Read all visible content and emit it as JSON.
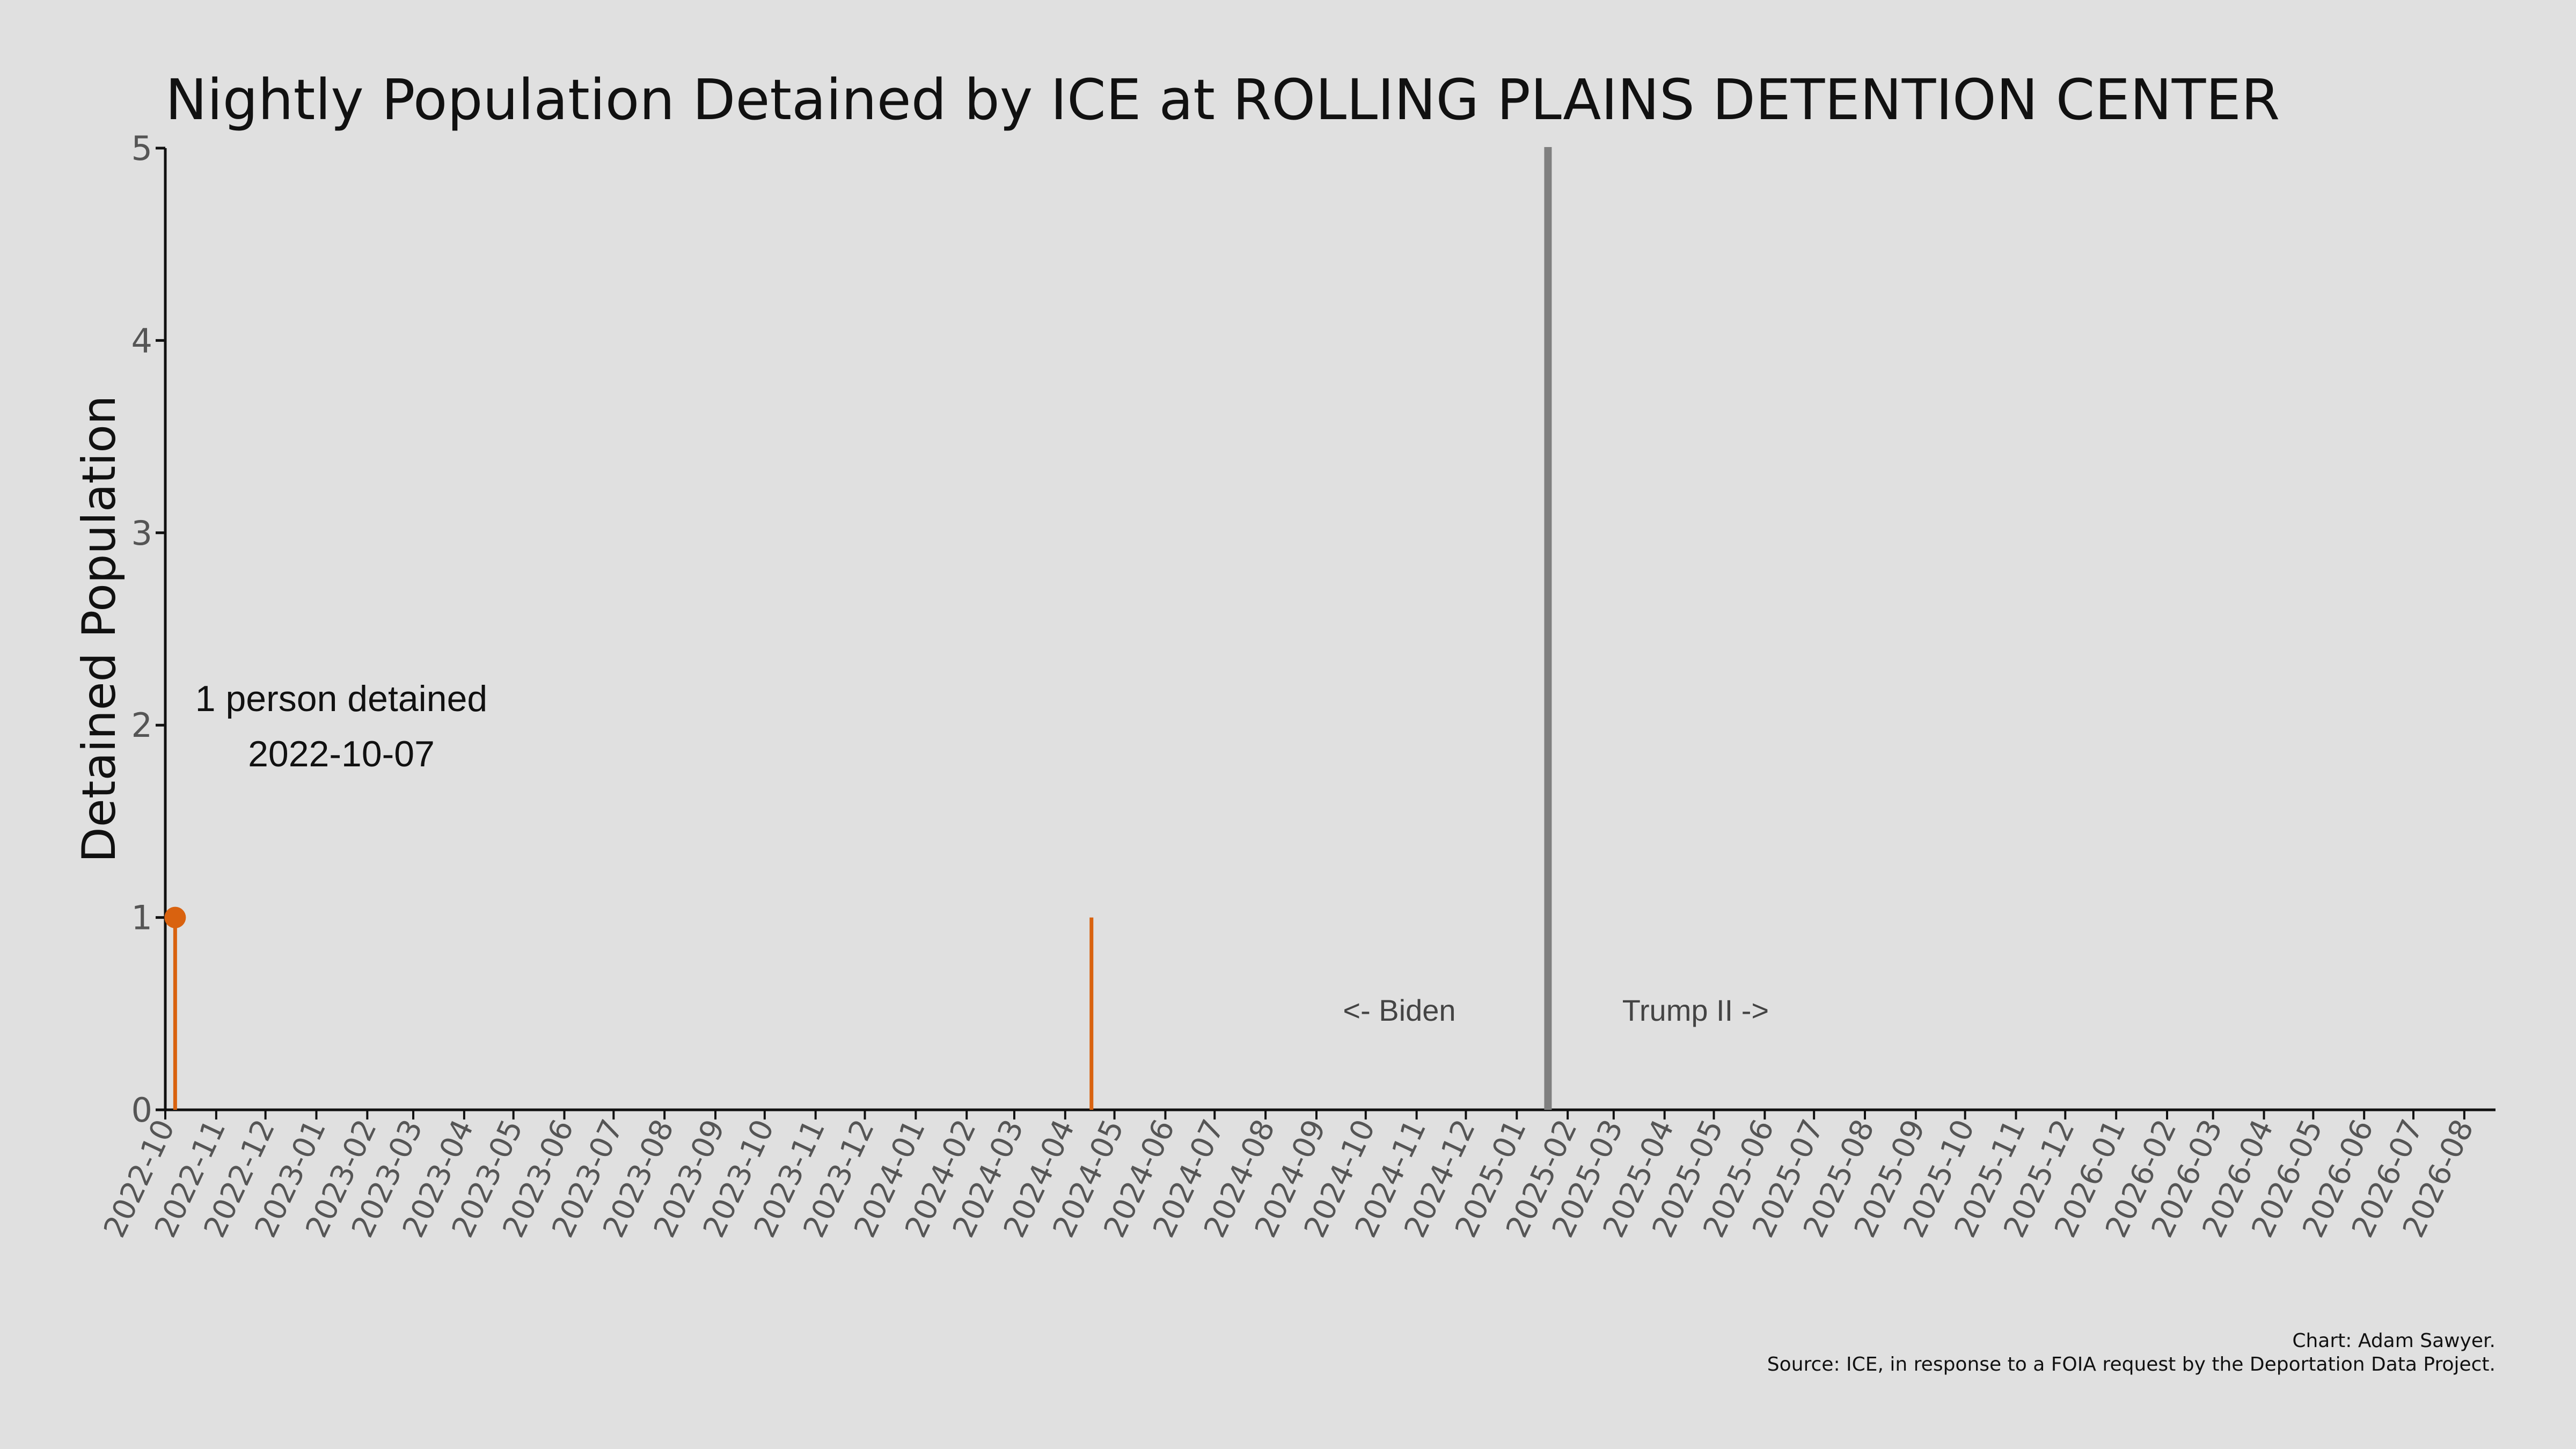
{
  "chart_data": {
    "type": "line",
    "title": "Nightly Population Detained by ICE at ROLLING PLAINS DETENTION CENTER",
    "xlabel": "",
    "ylabel": "Detained Population",
    "x_tick_labels": [
      "2022-10",
      "2022-11",
      "2022-12",
      "2023-01",
      "2023-02",
      "2023-03",
      "2023-04",
      "2023-05",
      "2023-06",
      "2023-07",
      "2023-08",
      "2023-09",
      "2023-10",
      "2023-11",
      "2023-12",
      "2024-01",
      "2024-02",
      "2024-03",
      "2024-04",
      "2024-05",
      "2024-06",
      "2024-07",
      "2024-08",
      "2024-09",
      "2024-10",
      "2024-11",
      "2024-12",
      "2025-01",
      "2025-02",
      "2025-03",
      "2025-04",
      "2025-05",
      "2025-06",
      "2025-07",
      "2025-08",
      "2025-09",
      "2025-10",
      "2025-11",
      "2025-12",
      "2026-01",
      "2026-02",
      "2026-03",
      "2026-04",
      "2026-05",
      "2026-06",
      "2026-07",
      "2026-08"
    ],
    "y_ticks": [
      "0",
      "1",
      "2",
      "3",
      "4",
      "5"
    ],
    "ylim": [
      0,
      5
    ],
    "xlim": [
      "2022-10-01",
      "2026-08-20"
    ],
    "grid": false,
    "series": [
      {
        "color": "#d9620f",
        "points": [
          {
            "x": "2022-10-07",
            "y": 1
          },
          {
            "x": "2024-04-17",
            "y": 1
          }
        ]
      }
    ],
    "highlight_point": {
      "x": "2022-10-07",
      "y": 1
    },
    "annotation": {
      "line1": "1 person detained",
      "line2": "2022-10-07"
    },
    "divider": {
      "x": "2025-01-20",
      "color": "#808080"
    },
    "era_labels": {
      "left": "<- Biden",
      "right": "Trump II ->"
    }
  },
  "footer": {
    "credit": "Chart: Adam Sawyer.",
    "source": "Source: ICE, in response to a FOIA request by the Deportation Data Project."
  }
}
